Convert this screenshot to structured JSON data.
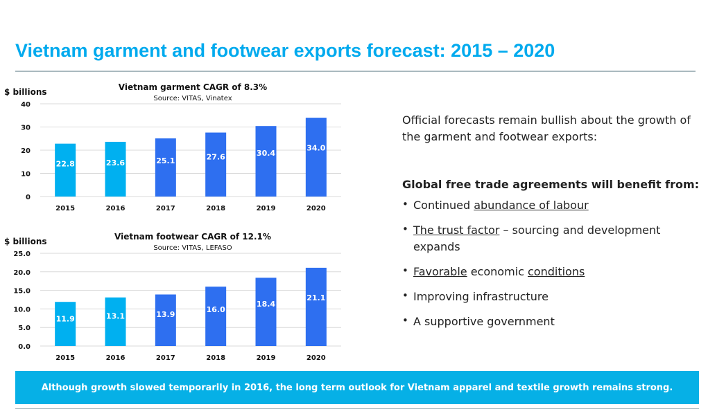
{
  "title": "Vietnam garment and footwear exports forecast: 2015 – 2020",
  "colors": {
    "title": "#00aaee",
    "bar_light": "#00b0f0",
    "bar_dark": "#2e6ff0",
    "banner": "#06b0e6"
  },
  "chart_data": [
    {
      "type": "bar",
      "title": "Vietnam garment CAGR of 8.3%",
      "subtitle": "Source:  VITAS, Vinatex",
      "ylabel": "$ billions",
      "categories": [
        "2015",
        "2016",
        "2017",
        "2018",
        "2019",
        "2020"
      ],
      "values": [
        22.8,
        23.6,
        25.1,
        27.6,
        30.4,
        34.0
      ],
      "data_labels": [
        "22.8",
        "23.6",
        "25.1",
        "27.6",
        "30.4",
        "34.0"
      ],
      "bar_colors": [
        "#00b0f0",
        "#00b0f0",
        "#2e6ff0",
        "#2e6ff0",
        "#2e6ff0",
        "#2e6ff0"
      ],
      "ylim": [
        0,
        40
      ],
      "yticks": [
        0,
        10,
        20,
        30,
        40
      ],
      "ytick_labels": [
        "0",
        "10",
        "20",
        "30",
        "40"
      ],
      "grid": true
    },
    {
      "type": "bar",
      "title": "Vietnam footwear CAGR of 12.1%",
      "subtitle": "Source:  VITAS, LEFASO",
      "ylabel": "$ billions",
      "categories": [
        "2015",
        "2016",
        "2017",
        "2018",
        "2019",
        "2020"
      ],
      "values": [
        11.9,
        13.1,
        13.9,
        16.0,
        18.4,
        21.1
      ],
      "data_labels": [
        "11.9",
        "13.1",
        "13.9",
        "16.0",
        "18.4",
        "21.1"
      ],
      "bar_colors": [
        "#00b0f0",
        "#00b0f0",
        "#2e6ff0",
        "#2e6ff0",
        "#2e6ff0",
        "#2e6ff0"
      ],
      "ylim": [
        0,
        25
      ],
      "yticks": [
        0,
        5,
        10,
        15,
        20,
        25
      ],
      "ytick_labels": [
        "0.0",
        "5.0",
        "10.0",
        "15.0",
        "20.0",
        "25.0"
      ],
      "grid": true
    }
  ],
  "right": {
    "intro": "Official forecasts remain bullish about the growth of the garment and footwear exports:",
    "benefit_heading": "Global free trade agreements will benefit from:",
    "b1_pre": "Continued ",
    "b1_u": "abundance of labour",
    "b2_u": "The trust factor",
    "b2_post": " – sourcing and development expands",
    "b3_u1": "Favorable",
    "b3_mid": " economic ",
    "b3_u2": "conditions",
    "b4": "Improving infrastructure",
    "b5": "A supportive government"
  },
  "banner": "Although growth slowed temporarily in 2016, the long term outlook for Vietnam apparel and textile growth remains strong."
}
